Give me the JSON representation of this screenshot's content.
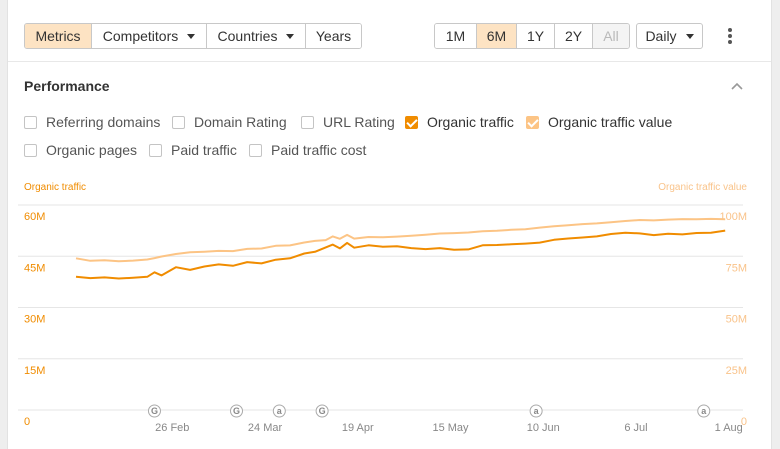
{
  "toolbar": {
    "tabs": [
      {
        "label": "Metrics",
        "active": true,
        "dropdown": false
      },
      {
        "label": "Competitors",
        "active": false,
        "dropdown": true
      },
      {
        "label": "Countries",
        "active": false,
        "dropdown": true
      },
      {
        "label": "Years",
        "active": false,
        "dropdown": false
      }
    ],
    "ranges": [
      {
        "label": "1M",
        "active": false,
        "disabled": false
      },
      {
        "label": "6M",
        "active": true,
        "disabled": false
      },
      {
        "label": "1Y",
        "active": false,
        "disabled": false
      },
      {
        "label": "2Y",
        "active": false,
        "disabled": false
      },
      {
        "label": "All",
        "active": false,
        "disabled": true
      }
    ],
    "granularity": "Daily",
    "more_icon": "kebab-menu-icon"
  },
  "section": {
    "title": "Performance",
    "collapse_icon": "chevron-up-icon"
  },
  "metrics": [
    {
      "label": "Referring domains",
      "checked": false,
      "style": "none"
    },
    {
      "label": "Domain Rating",
      "checked": false,
      "style": "none"
    },
    {
      "label": "URL Rating",
      "checked": false,
      "style": "none"
    },
    {
      "label": "Organic traffic",
      "checked": true,
      "style": "dark"
    },
    {
      "label": "Organic traffic value",
      "checked": true,
      "style": "light"
    },
    {
      "label": "Organic pages",
      "checked": false,
      "style": "none"
    },
    {
      "label": "Paid traffic",
      "checked": false,
      "style": "none"
    },
    {
      "label": "Paid traffic cost",
      "checked": false,
      "style": "none"
    }
  ],
  "colors": {
    "organic_traffic": "#f08c00",
    "organic_traffic_value": "#fcc485",
    "active_bg": "#fde3c3",
    "grid": "#e6e6e6"
  },
  "chart_data": {
    "type": "line",
    "left_axis_label": "Organic traffic",
    "right_axis_label": "Organic traffic value",
    "left_ticks": [
      "0",
      "15M",
      "30M",
      "45M",
      "60M"
    ],
    "right_ticks": [
      "0",
      "25M",
      "50M",
      "75M",
      "100M"
    ],
    "ylim_left": [
      0,
      60
    ],
    "ylim_right": [
      0,
      100
    ],
    "x_ticks": [
      "26 Feb",
      "24 Mar",
      "19 Apr",
      "15 May",
      "10 Jun",
      "6 Jul",
      "1 Aug"
    ],
    "x_tick_days": [
      27,
      53,
      79,
      105,
      131,
      157,
      183
    ],
    "xlim_days": [
      0,
      187
    ],
    "markers": [
      {
        "label": "G",
        "day": 22
      },
      {
        "label": "G",
        "day": 45
      },
      {
        "label": "a",
        "day": 57
      },
      {
        "label": "G",
        "day": 69
      },
      {
        "label": "a",
        "day": 129
      },
      {
        "label": "a",
        "day": 176
      }
    ],
    "grid": true,
    "series": [
      {
        "name": "Organic traffic",
        "axis": "left",
        "color": "#f08c00",
        "points": [
          [
            0,
            39.0
          ],
          [
            4,
            38.6
          ],
          [
            8,
            38.8
          ],
          [
            12,
            38.5
          ],
          [
            16,
            38.7
          ],
          [
            20,
            39.0
          ],
          [
            22,
            40.3
          ],
          [
            24,
            39.4
          ],
          [
            28,
            41.8
          ],
          [
            32,
            41.0
          ],
          [
            36,
            42.0
          ],
          [
            40,
            42.6
          ],
          [
            44,
            42.2
          ],
          [
            48,
            43.3
          ],
          [
            52,
            42.9
          ],
          [
            56,
            44.0
          ],
          [
            60,
            44.4
          ],
          [
            64,
            45.8
          ],
          [
            67,
            46.3
          ],
          [
            70,
            47.6
          ],
          [
            72,
            48.4
          ],
          [
            74,
            47.3
          ],
          [
            76,
            48.9
          ],
          [
            78,
            47.5
          ],
          [
            82,
            48.2
          ],
          [
            86,
            47.8
          ],
          [
            90,
            47.9
          ],
          [
            94,
            47.4
          ],
          [
            98,
            47.1
          ],
          [
            102,
            47.4
          ],
          [
            106,
            46.9
          ],
          [
            110,
            47.0
          ],
          [
            114,
            48.2
          ],
          [
            118,
            48.3
          ],
          [
            122,
            48.5
          ],
          [
            126,
            48.7
          ],
          [
            130,
            49.0
          ],
          [
            134,
            49.8
          ],
          [
            138,
            50.2
          ],
          [
            142,
            50.5
          ],
          [
            146,
            50.8
          ],
          [
            150,
            51.5
          ],
          [
            154,
            51.9
          ],
          [
            158,
            51.7
          ],
          [
            162,
            51.2
          ],
          [
            166,
            51.6
          ],
          [
            170,
            51.4
          ],
          [
            174,
            51.8
          ],
          [
            178,
            51.9
          ],
          [
            182,
            52.5
          ]
        ]
      },
      {
        "name": "Organic traffic value",
        "axis": "right",
        "color": "#fcc485",
        "points": [
          [
            0,
            74.0
          ],
          [
            4,
            72.8
          ],
          [
            8,
            73.0
          ],
          [
            12,
            72.6
          ],
          [
            16,
            72.9
          ],
          [
            20,
            73.4
          ],
          [
            22,
            74.1
          ],
          [
            24,
            74.9
          ],
          [
            28,
            76.1
          ],
          [
            32,
            77.0
          ],
          [
            36,
            77.2
          ],
          [
            40,
            77.6
          ],
          [
            44,
            77.5
          ],
          [
            48,
            78.6
          ],
          [
            52,
            78.8
          ],
          [
            56,
            80.1
          ],
          [
            60,
            80.3
          ],
          [
            64,
            81.7
          ],
          [
            67,
            82.5
          ],
          [
            70,
            82.9
          ],
          [
            72,
            84.7
          ],
          [
            74,
            83.5
          ],
          [
            76,
            85.4
          ],
          [
            78,
            83.6
          ],
          [
            82,
            84.4
          ],
          [
            86,
            84.3
          ],
          [
            90,
            84.6
          ],
          [
            94,
            85.0
          ],
          [
            98,
            85.5
          ],
          [
            102,
            86.1
          ],
          [
            106,
            86.3
          ],
          [
            110,
            86.6
          ],
          [
            114,
            87.2
          ],
          [
            118,
            87.4
          ],
          [
            122,
            87.9
          ],
          [
            126,
            88.2
          ],
          [
            130,
            89.0
          ],
          [
            134,
            89.6
          ],
          [
            138,
            90.1
          ],
          [
            142,
            90.7
          ],
          [
            146,
            91.0
          ],
          [
            150,
            91.6
          ],
          [
            154,
            92.2
          ],
          [
            158,
            92.7
          ],
          [
            162,
            92.5
          ],
          [
            166,
            92.9
          ],
          [
            170,
            93.1
          ],
          [
            174,
            93.0
          ],
          [
            178,
            93.2
          ],
          [
            182,
            93.0
          ]
        ]
      }
    ]
  }
}
